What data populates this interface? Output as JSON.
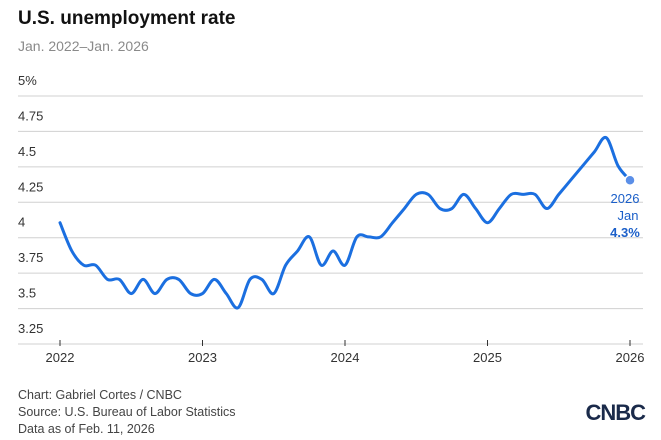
{
  "header": {
    "title": "U.S. unemployment rate",
    "subtitle": "Jan. 2022–Jan. 2026"
  },
  "footer": {
    "credit": "Chart: Gabriel Cortes / CNBC",
    "source": "Source: U.S. Bureau of Labor Statistics",
    "data_as_of": "Data as of Feb. 11, 2026",
    "logo": "CNBC"
  },
  "annotation": {
    "year": "2026",
    "month": "Jan",
    "value": "4.3%"
  },
  "colors": {
    "line": "#1b6fe0",
    "grid": "#d0d0d0",
    "annotation": "#1b5fc9"
  },
  "chart_data": {
    "type": "line",
    "title": "U.S. unemployment rate",
    "subtitle": "Jan. 2022–Jan. 2026",
    "ylim": [
      3.25,
      5
    ],
    "yticks": [
      3.25,
      3.5,
      3.75,
      4,
      4.25,
      4.5,
      4.75,
      5
    ],
    "ytick_labels": [
      "3.25",
      "3.5",
      "3.75",
      "4",
      "4.25",
      "4.5",
      "4.75",
      "5%"
    ],
    "xticks": [
      "2022",
      "2023",
      "2024",
      "2025",
      "2026"
    ],
    "grid": "horizontal",
    "series": [
      {
        "x": [
          "2022-01",
          "2022-02",
          "2022-03",
          "2022-04",
          "2022-05",
          "2022-06",
          "2022-07",
          "2022-08",
          "2022-09",
          "2022-10",
          "2022-11",
          "2022-12",
          "2023-01",
          "2023-02",
          "2023-03",
          "2023-04",
          "2023-05",
          "2023-06",
          "2023-07",
          "2023-08",
          "2023-09",
          "2023-10",
          "2023-11",
          "2023-12",
          "2024-01",
          "2024-02",
          "2024-03",
          "2024-04",
          "2024-05",
          "2024-06",
          "2024-07",
          "2024-08",
          "2024-09",
          "2024-10",
          "2024-11",
          "2024-12",
          "2025-01",
          "2025-02",
          "2025-03",
          "2025-04",
          "2025-05",
          "2025-06",
          "2025-07",
          "2025-08",
          "2025-09",
          "2025-10",
          "2025-11",
          "2025-12",
          "2026-01"
        ],
        "values": [
          4.0,
          3.8,
          3.7,
          3.7,
          3.6,
          3.6,
          3.5,
          3.6,
          3.5,
          3.6,
          3.6,
          3.5,
          3.5,
          3.6,
          3.5,
          3.4,
          3.6,
          3.6,
          3.5,
          3.7,
          3.8,
          3.9,
          3.7,
          3.8,
          3.7,
          3.9,
          3.9,
          3.9,
          4.0,
          4.1,
          4.2,
          4.2,
          4.1,
          4.1,
          4.2,
          4.1,
          4.0,
          4.1,
          4.2,
          4.2,
          4.2,
          4.1,
          4.2,
          4.3,
          4.4,
          4.5,
          4.6,
          4.4,
          4.3
        ]
      }
    ]
  }
}
